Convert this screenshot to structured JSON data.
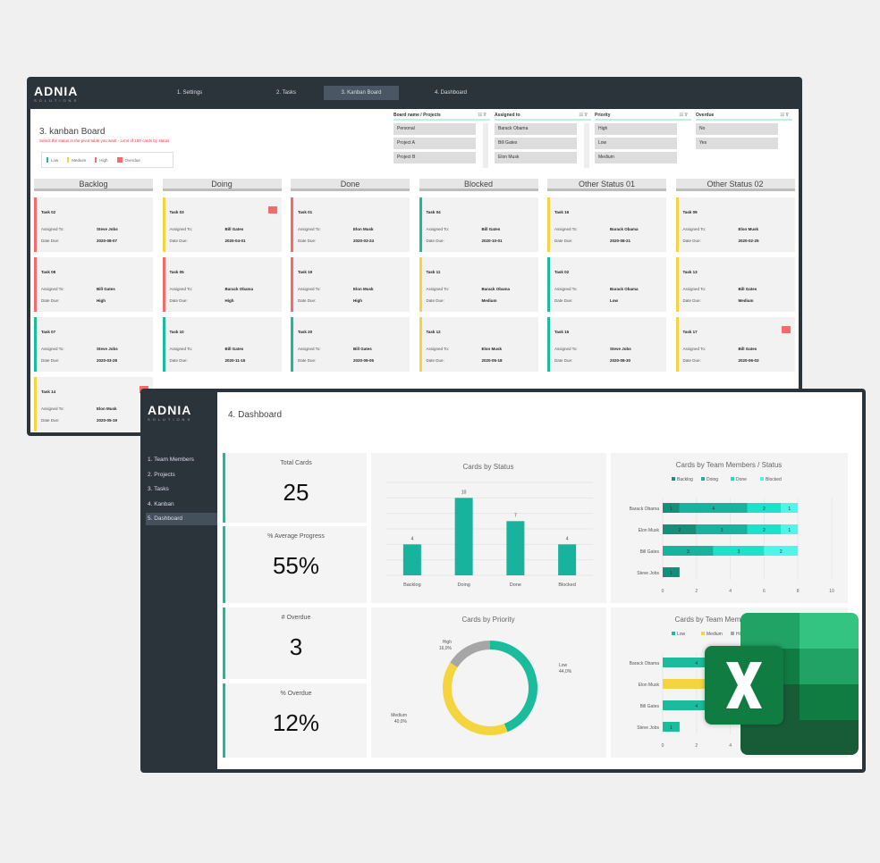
{
  "brand": {
    "name": "ADNIA",
    "tagline": "SOLUTIONS"
  },
  "kanban_window": {
    "nav": [
      {
        "label": "1. Settings"
      },
      {
        "label": "2. Tasks"
      },
      {
        "label": "3. Kanban Board",
        "active": true
      },
      {
        "label": "4. Dashboard"
      }
    ],
    "title": "3. kanban Board",
    "subtitle": "Select the status in the pivot table you want - Limit of 100 cards by status",
    "legend": [
      {
        "label": "Low",
        "color": "#1abc9c"
      },
      {
        "label": "Medium",
        "color": "#f5d53f"
      },
      {
        "label": "High",
        "color": "#f56b6b"
      },
      {
        "label": "Overdue",
        "color": "#f56b6b",
        "icon": "flag-icon"
      }
    ],
    "slicers": [
      {
        "title": "Board name / Projects",
        "items": [
          "Personal",
          "Project A",
          "Project B"
        ]
      },
      {
        "title": "Assigned to",
        "items": [
          "Barack Obama",
          "Bill Gates",
          "Elon Musk"
        ]
      },
      {
        "title": "Priority",
        "items": [
          "High",
          "Low",
          "Medium"
        ]
      },
      {
        "title": "Overdue",
        "items": [
          "No",
          "Yes"
        ]
      }
    ],
    "labels": {
      "assigned": "Assigned To:",
      "due": "Date Due:"
    },
    "columns": [
      {
        "name": "Backlog",
        "cards": [
          {
            "task": "Task 02",
            "assigned": "Steve Jobs",
            "due": "2020-08-07",
            "priority": "High"
          },
          {
            "task": "Task 08",
            "assigned": "Bill Gates",
            "due": "High",
            "priority": "High"
          },
          {
            "task": "Task 07",
            "assigned": "Steve Jobs",
            "due": "2020-03-28",
            "priority": "Low"
          },
          {
            "task": "Task 14",
            "assigned": "Elon Musk",
            "due": "2020-05-19",
            "priority": "Medium",
            "overdue": true
          }
        ]
      },
      {
        "name": "Doing",
        "cards": [
          {
            "task": "Task 03",
            "assigned": "Bill Gates",
            "due": "2020-04-01",
            "priority": "Medium",
            "overdue": true
          },
          {
            "task": "Task 05",
            "assigned": "Barack Obama",
            "due": "High",
            "priority": "High"
          },
          {
            "task": "Task 10",
            "assigned": "Bill Gates",
            "due": "2020-11-15",
            "priority": "Low"
          }
        ]
      },
      {
        "name": "Done",
        "cards": [
          {
            "task": "Task 01",
            "assigned": "Elon Musk",
            "due": "2020-03-24",
            "priority": "High"
          },
          {
            "task": "Task 19",
            "assigned": "Elon Musk",
            "due": "High",
            "priority": "High"
          },
          {
            "task": "Task 20",
            "assigned": "Bill Gates",
            "due": "2020-09-05",
            "priority": "Low"
          }
        ]
      },
      {
        "name": "Blocked",
        "cards": [
          {
            "task": "Task 04",
            "assigned": "Bill Gates",
            "due": "2020-10-01",
            "priority": "Low"
          },
          {
            "task": "Task 11",
            "assigned": "Barack Obama",
            "due": "Medium",
            "priority": "Medium"
          },
          {
            "task": "Task 12",
            "assigned": "Elon Musk",
            "due": "2020-05-18",
            "priority": "Medium"
          }
        ]
      },
      {
        "name": "Other Status 01",
        "cards": [
          {
            "task": "Task 16",
            "assigned": "Barack Obama",
            "due": "2020-08-21",
            "priority": "Medium"
          },
          {
            "task": "Task 02",
            "assigned": "Barack Obama",
            "due": "Low",
            "priority": "Low"
          },
          {
            "task": "Task 15",
            "assigned": "Steve Jobs",
            "due": "2020-08-30",
            "priority": "Low"
          }
        ]
      },
      {
        "name": "Other Status 02",
        "cards": [
          {
            "task": "Task 09",
            "assigned": "Elon Musk",
            "due": "2020-02-25",
            "priority": "Medium"
          },
          {
            "task": "Task 13",
            "assigned": "Bill Gates",
            "due": "Medium",
            "priority": "Medium"
          },
          {
            "task": "Task 17",
            "assigned": "Bill Gates",
            "due": "2020-06-03",
            "priority": "Medium",
            "overdue": true
          }
        ]
      }
    ]
  },
  "dashboard_window": {
    "title": "4. Dashboard",
    "sidebar": [
      {
        "label": "1. Team Members"
      },
      {
        "label": "2. Projects"
      },
      {
        "label": "3. Tasks"
      },
      {
        "label": "4. Kanban"
      },
      {
        "label": "5. Dashboard",
        "active": true
      }
    ],
    "kpis": [
      {
        "label": "Total Cards",
        "value": "25"
      },
      {
        "label": "% Average Progress",
        "value": "55%"
      },
      {
        "label": "# Overdue",
        "value": "3"
      },
      {
        "label": "% Overdue",
        "value": "12%"
      }
    ]
  },
  "colors": {
    "low": "#1abc9c",
    "medium": "#f5d53f",
    "high": "#f56b6b",
    "dark": "#2b333b",
    "backlog": "#138f7a",
    "doing": "#17b39c",
    "done": "#1fe0c8",
    "blocked": "#4ff5e6",
    "gray": "#a6a6a6"
  },
  "chart_data": [
    {
      "type": "bar",
      "title": "Cards by Status",
      "categories": [
        "Backlog",
        "Doing",
        "Done",
        "Blocked"
      ],
      "values": [
        4,
        10,
        7,
        4
      ],
      "ylim": [
        0,
        12
      ],
      "grid": true
    },
    {
      "type": "bar",
      "orientation": "horizontal",
      "stacked": true,
      "title": "Cards by Team Members / Status",
      "categories": [
        "Barack Obama",
        "Elon Musk",
        "Bill Gates",
        "Steve Jobs"
      ],
      "series": [
        {
          "name": "Backlog",
          "values": [
            1,
            2,
            0,
            1
          ]
        },
        {
          "name": "Doing",
          "values": [
            4,
            3,
            3,
            0
          ]
        },
        {
          "name": "Done",
          "values": [
            2,
            2,
            3,
            0
          ]
        },
        {
          "name": "Blocked",
          "values": [
            1,
            1,
            2,
            0
          ]
        }
      ],
      "xlim": [
        0,
        10
      ],
      "xticks": [
        0,
        2,
        4,
        6,
        8,
        10
      ],
      "legend": "top"
    },
    {
      "type": "pie",
      "donut": true,
      "title": "Cards by Priority",
      "categories": [
        "Low",
        "Medium",
        "High"
      ],
      "values": [
        44.0,
        40.0,
        16.0
      ],
      "labels": [
        "44,0%",
        "40,0%",
        "16,0%"
      ]
    },
    {
      "type": "bar",
      "orientation": "horizontal",
      "stacked": true,
      "title": "Cards by Team Members / Priority",
      "categories": [
        "Barack Obama",
        "Elon Musk",
        "Bill Gates",
        "Steve Jobs"
      ],
      "series": [
        {
          "name": "Low",
          "values": [
            4,
            0,
            4,
            1
          ]
        },
        {
          "name": "Medium",
          "values": [
            2,
            6,
            2,
            0
          ]
        },
        {
          "name": "High",
          "values": [
            2,
            2,
            2,
            0
          ]
        }
      ],
      "xlim": [
        0,
        10
      ],
      "xticks": [
        0,
        2,
        4,
        6,
        8,
        10
      ],
      "legend": "top"
    }
  ]
}
